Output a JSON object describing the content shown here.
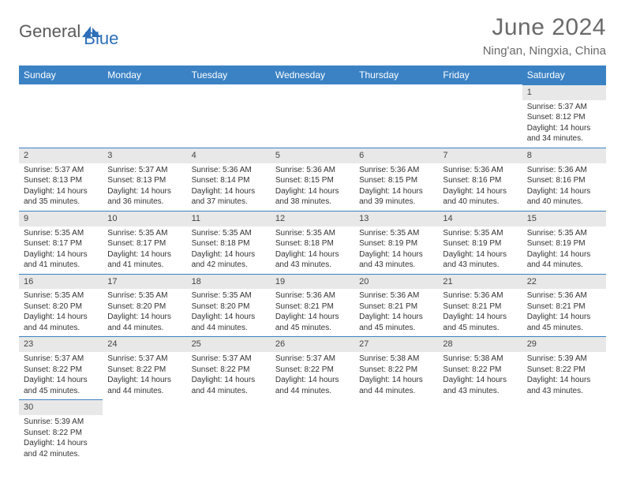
{
  "logo": {
    "text1": "General",
    "text2": "Blue"
  },
  "title": "June 2024",
  "location": "Ning'an, Ningxia, China",
  "header_bg": "#3b82c4",
  "daynum_bg": "#e8e8e8",
  "border_color": "#3b82c4",
  "dow": [
    "Sunday",
    "Monday",
    "Tuesday",
    "Wednesday",
    "Thursday",
    "Friday",
    "Saturday"
  ],
  "weeks": [
    [
      null,
      null,
      null,
      null,
      null,
      null,
      {
        "n": "1",
        "sr": "Sunrise: 5:37 AM",
        "ss": "Sunset: 8:12 PM",
        "d1": "Daylight: 14 hours",
        "d2": "and 34 minutes."
      }
    ],
    [
      {
        "n": "2",
        "sr": "Sunrise: 5:37 AM",
        "ss": "Sunset: 8:13 PM",
        "d1": "Daylight: 14 hours",
        "d2": "and 35 minutes."
      },
      {
        "n": "3",
        "sr": "Sunrise: 5:37 AM",
        "ss": "Sunset: 8:13 PM",
        "d1": "Daylight: 14 hours",
        "d2": "and 36 minutes."
      },
      {
        "n": "4",
        "sr": "Sunrise: 5:36 AM",
        "ss": "Sunset: 8:14 PM",
        "d1": "Daylight: 14 hours",
        "d2": "and 37 minutes."
      },
      {
        "n": "5",
        "sr": "Sunrise: 5:36 AM",
        "ss": "Sunset: 8:15 PM",
        "d1": "Daylight: 14 hours",
        "d2": "and 38 minutes."
      },
      {
        "n": "6",
        "sr": "Sunrise: 5:36 AM",
        "ss": "Sunset: 8:15 PM",
        "d1": "Daylight: 14 hours",
        "d2": "and 39 minutes."
      },
      {
        "n": "7",
        "sr": "Sunrise: 5:36 AM",
        "ss": "Sunset: 8:16 PM",
        "d1": "Daylight: 14 hours",
        "d2": "and 40 minutes."
      },
      {
        "n": "8",
        "sr": "Sunrise: 5:36 AM",
        "ss": "Sunset: 8:16 PM",
        "d1": "Daylight: 14 hours",
        "d2": "and 40 minutes."
      }
    ],
    [
      {
        "n": "9",
        "sr": "Sunrise: 5:35 AM",
        "ss": "Sunset: 8:17 PM",
        "d1": "Daylight: 14 hours",
        "d2": "and 41 minutes."
      },
      {
        "n": "10",
        "sr": "Sunrise: 5:35 AM",
        "ss": "Sunset: 8:17 PM",
        "d1": "Daylight: 14 hours",
        "d2": "and 41 minutes."
      },
      {
        "n": "11",
        "sr": "Sunrise: 5:35 AM",
        "ss": "Sunset: 8:18 PM",
        "d1": "Daylight: 14 hours",
        "d2": "and 42 minutes."
      },
      {
        "n": "12",
        "sr": "Sunrise: 5:35 AM",
        "ss": "Sunset: 8:18 PM",
        "d1": "Daylight: 14 hours",
        "d2": "and 43 minutes."
      },
      {
        "n": "13",
        "sr": "Sunrise: 5:35 AM",
        "ss": "Sunset: 8:19 PM",
        "d1": "Daylight: 14 hours",
        "d2": "and 43 minutes."
      },
      {
        "n": "14",
        "sr": "Sunrise: 5:35 AM",
        "ss": "Sunset: 8:19 PM",
        "d1": "Daylight: 14 hours",
        "d2": "and 43 minutes."
      },
      {
        "n": "15",
        "sr": "Sunrise: 5:35 AM",
        "ss": "Sunset: 8:19 PM",
        "d1": "Daylight: 14 hours",
        "d2": "and 44 minutes."
      }
    ],
    [
      {
        "n": "16",
        "sr": "Sunrise: 5:35 AM",
        "ss": "Sunset: 8:20 PM",
        "d1": "Daylight: 14 hours",
        "d2": "and 44 minutes."
      },
      {
        "n": "17",
        "sr": "Sunrise: 5:35 AM",
        "ss": "Sunset: 8:20 PM",
        "d1": "Daylight: 14 hours",
        "d2": "and 44 minutes."
      },
      {
        "n": "18",
        "sr": "Sunrise: 5:35 AM",
        "ss": "Sunset: 8:20 PM",
        "d1": "Daylight: 14 hours",
        "d2": "and 44 minutes."
      },
      {
        "n": "19",
        "sr": "Sunrise: 5:36 AM",
        "ss": "Sunset: 8:21 PM",
        "d1": "Daylight: 14 hours",
        "d2": "and 45 minutes."
      },
      {
        "n": "20",
        "sr": "Sunrise: 5:36 AM",
        "ss": "Sunset: 8:21 PM",
        "d1": "Daylight: 14 hours",
        "d2": "and 45 minutes."
      },
      {
        "n": "21",
        "sr": "Sunrise: 5:36 AM",
        "ss": "Sunset: 8:21 PM",
        "d1": "Daylight: 14 hours",
        "d2": "and 45 minutes."
      },
      {
        "n": "22",
        "sr": "Sunrise: 5:36 AM",
        "ss": "Sunset: 8:21 PM",
        "d1": "Daylight: 14 hours",
        "d2": "and 45 minutes."
      }
    ],
    [
      {
        "n": "23",
        "sr": "Sunrise: 5:37 AM",
        "ss": "Sunset: 8:22 PM",
        "d1": "Daylight: 14 hours",
        "d2": "and 45 minutes."
      },
      {
        "n": "24",
        "sr": "Sunrise: 5:37 AM",
        "ss": "Sunset: 8:22 PM",
        "d1": "Daylight: 14 hours",
        "d2": "and 44 minutes."
      },
      {
        "n": "25",
        "sr": "Sunrise: 5:37 AM",
        "ss": "Sunset: 8:22 PM",
        "d1": "Daylight: 14 hours",
        "d2": "and 44 minutes."
      },
      {
        "n": "26",
        "sr": "Sunrise: 5:37 AM",
        "ss": "Sunset: 8:22 PM",
        "d1": "Daylight: 14 hours",
        "d2": "and 44 minutes."
      },
      {
        "n": "27",
        "sr": "Sunrise: 5:38 AM",
        "ss": "Sunset: 8:22 PM",
        "d1": "Daylight: 14 hours",
        "d2": "and 44 minutes."
      },
      {
        "n": "28",
        "sr": "Sunrise: 5:38 AM",
        "ss": "Sunset: 8:22 PM",
        "d1": "Daylight: 14 hours",
        "d2": "and 43 minutes."
      },
      {
        "n": "29",
        "sr": "Sunrise: 5:39 AM",
        "ss": "Sunset: 8:22 PM",
        "d1": "Daylight: 14 hours",
        "d2": "and 43 minutes."
      }
    ],
    [
      {
        "n": "30",
        "sr": "Sunrise: 5:39 AM",
        "ss": "Sunset: 8:22 PM",
        "d1": "Daylight: 14 hours",
        "d2": "and 42 minutes."
      },
      null,
      null,
      null,
      null,
      null,
      null
    ]
  ]
}
